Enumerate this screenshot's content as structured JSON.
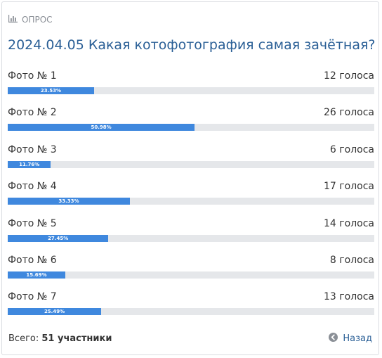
{
  "header": {
    "label": "ОПРОС",
    "icon": "bar-chart-icon"
  },
  "poll": {
    "title": "2024.04.05 Какая котофотография самая зачётная?",
    "options": [
      {
        "label": "Фото № 1",
        "votes": "12 голоса",
        "percent_label": "23.53%",
        "percent": 23.53
      },
      {
        "label": "Фото № 2",
        "votes": "26 голоса",
        "percent_label": "50.98%",
        "percent": 50.98
      },
      {
        "label": "Фото № 3",
        "votes": "6 голоса",
        "percent_label": "11.76%",
        "percent": 11.76
      },
      {
        "label": "Фото № 4",
        "votes": "17 голоса",
        "percent_label": "33.33%",
        "percent": 33.33
      },
      {
        "label": "Фото № 5",
        "votes": "14 голоса",
        "percent_label": "27.45%",
        "percent": 27.45
      },
      {
        "label": "Фото № 6",
        "votes": "8 голоса",
        "percent_label": "15.69%",
        "percent": 15.69
      },
      {
        "label": "Фото № 7",
        "votes": "13 голоса",
        "percent_label": "25.49%",
        "percent": 25.49
      }
    ]
  },
  "footer": {
    "total_prefix": "Всего:",
    "total_value": "51 участники",
    "back_label": "Назад",
    "back_icon": "arrow-left-circle-icon"
  },
  "colors": {
    "accent": "#3f88de",
    "title": "#2a5f96",
    "track": "#e5e7ea"
  }
}
